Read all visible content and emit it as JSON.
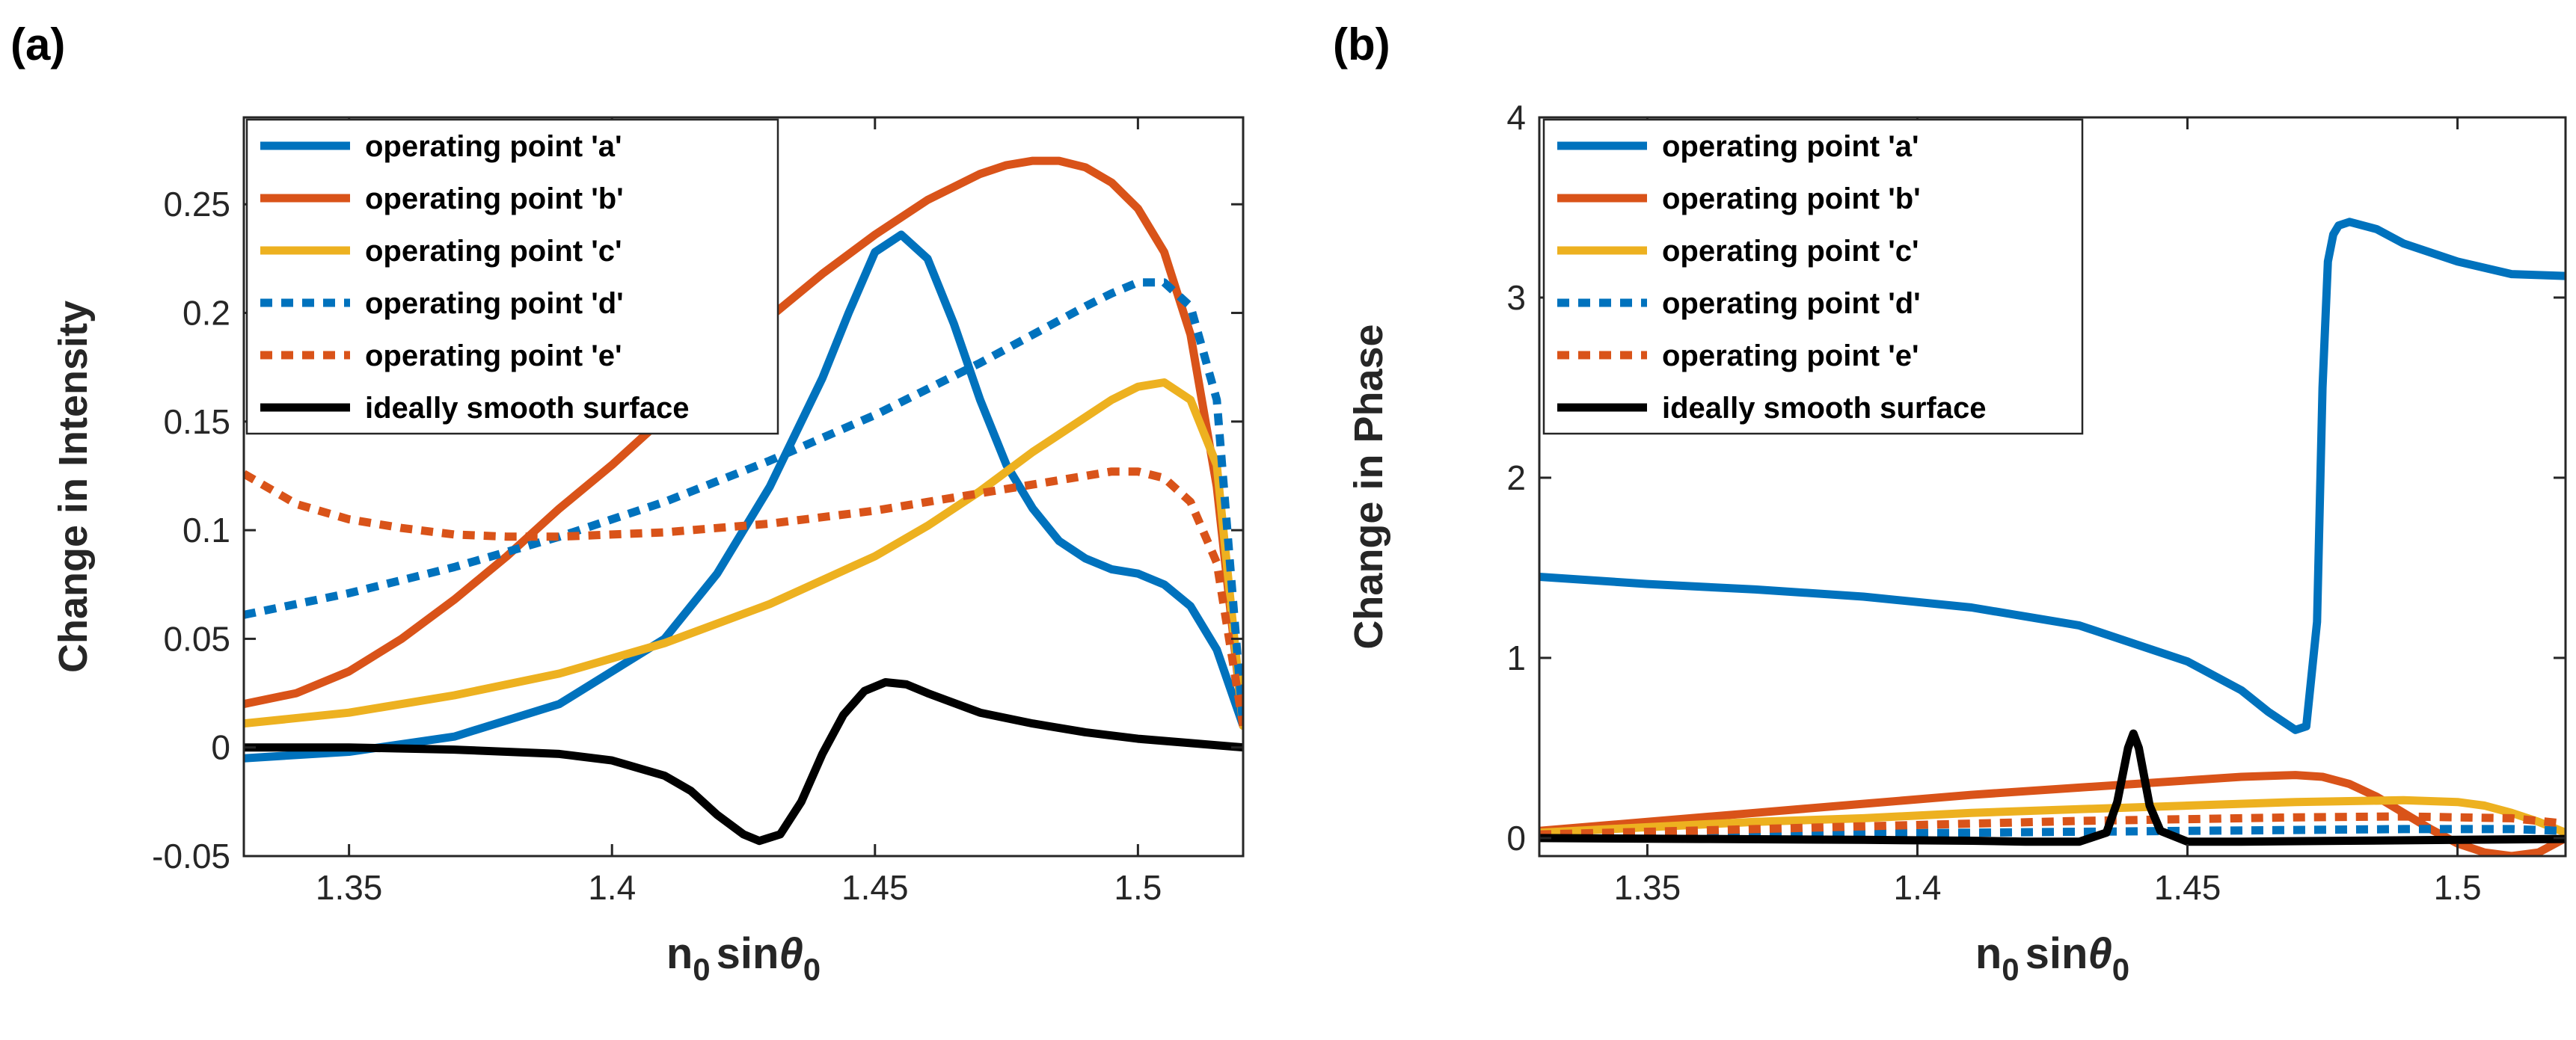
{
  "chart_data": [
    {
      "type": "line",
      "panel_label": "(a)",
      "ylabel": "Change in Intensity",
      "xlabel": {
        "main": "n",
        "sub1": "0",
        "mid": "sin",
        "theta": "θ",
        "sub2": "0"
      },
      "xlim": [
        1.33,
        1.52
      ],
      "ylim": [
        -0.05,
        0.29
      ],
      "xticks": [
        1.35,
        1.4,
        1.45,
        1.5
      ],
      "xtick_labels": [
        "1.35",
        "1.4",
        "1.45",
        "1.5"
      ],
      "yticks": [
        -0.05,
        0,
        0.05,
        0.1,
        0.15,
        0.2,
        0.25
      ],
      "ytick_labels": [
        "-0.05",
        "0",
        "0.05",
        "0.1",
        "0.15",
        "0.2",
        "0.25"
      ],
      "legend_position": "top-left",
      "series": [
        {
          "name": "operating point 'a'",
          "color": "#0072BD",
          "style": "solid",
          "x": [
            1.33,
            1.35,
            1.37,
            1.39,
            1.41,
            1.42,
            1.43,
            1.44,
            1.445,
            1.45,
            1.455,
            1.46,
            1.465,
            1.47,
            1.475,
            1.48,
            1.485,
            1.49,
            1.495,
            1.5,
            1.505,
            1.51,
            1.515,
            1.52
          ],
          "y": [
            -0.005,
            -0.002,
            0.005,
            0.02,
            0.05,
            0.08,
            0.12,
            0.17,
            0.2,
            0.228,
            0.236,
            0.225,
            0.195,
            0.16,
            0.13,
            0.11,
            0.095,
            0.087,
            0.082,
            0.08,
            0.075,
            0.065,
            0.045,
            0.01
          ]
        },
        {
          "name": "operating point 'b'",
          "color": "#D95319",
          "style": "solid",
          "x": [
            1.33,
            1.34,
            1.35,
            1.36,
            1.37,
            1.38,
            1.39,
            1.4,
            1.41,
            1.42,
            1.43,
            1.44,
            1.45,
            1.46,
            1.47,
            1.475,
            1.48,
            1.485,
            1.49,
            1.495,
            1.5,
            1.505,
            1.51,
            1.515,
            1.52
          ],
          "y": [
            0.02,
            0.025,
            0.035,
            0.05,
            0.068,
            0.088,
            0.11,
            0.13,
            0.152,
            0.175,
            0.198,
            0.218,
            0.236,
            0.252,
            0.264,
            0.268,
            0.27,
            0.27,
            0.267,
            0.26,
            0.248,
            0.228,
            0.19,
            0.12,
            0.01
          ]
        },
        {
          "name": "operating point 'c'",
          "color": "#EDB120",
          "style": "solid",
          "x": [
            1.33,
            1.35,
            1.37,
            1.39,
            1.41,
            1.43,
            1.45,
            1.46,
            1.47,
            1.48,
            1.49,
            1.495,
            1.5,
            1.505,
            1.51,
            1.515,
            1.52
          ],
          "y": [
            0.011,
            0.016,
            0.024,
            0.034,
            0.048,
            0.066,
            0.088,
            0.102,
            0.118,
            0.136,
            0.152,
            0.16,
            0.166,
            0.168,
            0.16,
            0.13,
            0.01
          ]
        },
        {
          "name": "operating point 'd'",
          "color": "#0072BD",
          "style": "dotted",
          "x": [
            1.33,
            1.35,
            1.37,
            1.39,
            1.41,
            1.43,
            1.45,
            1.47,
            1.48,
            1.49,
            1.495,
            1.5,
            1.505,
            1.51,
            1.515,
            1.52
          ],
          "y": [
            0.061,
            0.071,
            0.083,
            0.097,
            0.113,
            0.132,
            0.153,
            0.177,
            0.19,
            0.203,
            0.209,
            0.214,
            0.214,
            0.203,
            0.16,
            0.01
          ]
        },
        {
          "name": "operating point 'e'",
          "color": "#D95319",
          "style": "dotted",
          "x": [
            1.33,
            1.34,
            1.35,
            1.36,
            1.37,
            1.38,
            1.39,
            1.4,
            1.41,
            1.42,
            1.43,
            1.44,
            1.45,
            1.46,
            1.47,
            1.48,
            1.49,
            1.495,
            1.5,
            1.505,
            1.51,
            1.515,
            1.52
          ],
          "y": [
            0.126,
            0.112,
            0.105,
            0.101,
            0.098,
            0.097,
            0.097,
            0.098,
            0.099,
            0.101,
            0.103,
            0.106,
            0.109,
            0.113,
            0.117,
            0.121,
            0.125,
            0.127,
            0.127,
            0.124,
            0.113,
            0.085,
            0.01
          ]
        },
        {
          "name": "ideally smooth surface",
          "color": "#000000",
          "style": "solid",
          "x": [
            1.33,
            1.35,
            1.37,
            1.39,
            1.4,
            1.41,
            1.415,
            1.42,
            1.425,
            1.428,
            1.432,
            1.436,
            1.44,
            1.444,
            1.448,
            1.452,
            1.456,
            1.46,
            1.47,
            1.48,
            1.49,
            1.5,
            1.51,
            1.52
          ],
          "y": [
            0,
            0,
            -0.001,
            -0.003,
            -0.006,
            -0.013,
            -0.02,
            -0.031,
            -0.04,
            -0.043,
            -0.04,
            -0.025,
            -0.003,
            0.015,
            0.026,
            0.03,
            0.029,
            0.025,
            0.016,
            0.011,
            0.007,
            0.004,
            0.002,
            0
          ]
        }
      ]
    },
    {
      "type": "line",
      "panel_label": "(b)",
      "ylabel": "Change in Phase",
      "xlabel": {
        "main": "n",
        "sub1": "0",
        "mid": "sin",
        "theta": "θ",
        "sub2": "0"
      },
      "xlim": [
        1.33,
        1.52
      ],
      "ylim": [
        -0.1,
        4
      ],
      "xticks": [
        1.35,
        1.4,
        1.45,
        1.5
      ],
      "xtick_labels": [
        "1.35",
        "1.4",
        "1.45",
        "1.5"
      ],
      "yticks": [
        0,
        1,
        2,
        3,
        4
      ],
      "ytick_labels": [
        "0",
        "1",
        "2",
        "3",
        "4"
      ],
      "legend_position": "top-left",
      "series": [
        {
          "name": "operating point 'a'",
          "color": "#0072BD",
          "style": "solid",
          "x": [
            1.33,
            1.35,
            1.37,
            1.39,
            1.41,
            1.43,
            1.45,
            1.46,
            1.465,
            1.47,
            1.472,
            1.474,
            1.475,
            1.476,
            1.477,
            1.478,
            1.48,
            1.485,
            1.49,
            1.5,
            1.51,
            1.52
          ],
          "y": [
            1.45,
            1.41,
            1.38,
            1.34,
            1.28,
            1.18,
            0.98,
            0.82,
            0.7,
            0.6,
            0.62,
            1.2,
            2.5,
            3.2,
            3.35,
            3.4,
            3.42,
            3.38,
            3.3,
            3.2,
            3.13,
            3.12
          ]
        },
        {
          "name": "operating point 'b'",
          "color": "#D95319",
          "style": "solid",
          "x": [
            1.33,
            1.35,
            1.37,
            1.39,
            1.41,
            1.43,
            1.45,
            1.46,
            1.47,
            1.475,
            1.48,
            1.485,
            1.49,
            1.495,
            1.5,
            1.505,
            1.51,
            1.515,
            1.52
          ],
          "y": [
            0.04,
            0.09,
            0.14,
            0.19,
            0.24,
            0.28,
            0.32,
            0.34,
            0.35,
            0.34,
            0.3,
            0.23,
            0.14,
            0.05,
            -0.03,
            -0.08,
            -0.1,
            -0.08,
            0
          ]
        },
        {
          "name": "operating point 'c'",
          "color": "#EDB120",
          "style": "solid",
          "x": [
            1.33,
            1.35,
            1.37,
            1.39,
            1.41,
            1.43,
            1.45,
            1.47,
            1.49,
            1.5,
            1.505,
            1.51,
            1.515,
            1.52
          ],
          "y": [
            0.03,
            0.06,
            0.09,
            0.11,
            0.14,
            0.16,
            0.18,
            0.2,
            0.21,
            0.2,
            0.18,
            0.14,
            0.09,
            0.03
          ]
        },
        {
          "name": "operating point 'd'",
          "color": "#0072BD",
          "style": "dotted",
          "x": [
            1.33,
            1.35,
            1.37,
            1.39,
            1.41,
            1.43,
            1.45,
            1.47,
            1.49,
            1.51,
            1.52
          ],
          "y": [
            0.01,
            0.015,
            0.02,
            0.025,
            0.03,
            0.035,
            0.04,
            0.045,
            0.05,
            0.05,
            0.04
          ]
        },
        {
          "name": "operating point 'e'",
          "color": "#D95319",
          "style": "dotted",
          "x": [
            1.33,
            1.35,
            1.37,
            1.39,
            1.41,
            1.43,
            1.45,
            1.47,
            1.49,
            1.51,
            1.52
          ],
          "y": [
            0.02,
            0.035,
            0.05,
            0.065,
            0.08,
            0.095,
            0.105,
            0.115,
            0.12,
            0.11,
            0.08
          ]
        },
        {
          "name": "ideally smooth surface",
          "color": "#000000",
          "style": "solid",
          "x": [
            1.33,
            1.36,
            1.39,
            1.41,
            1.42,
            1.43,
            1.435,
            1.437,
            1.439,
            1.44,
            1.441,
            1.443,
            1.445,
            1.45,
            1.46,
            1.48,
            1.5,
            1.52
          ],
          "y": [
            0,
            -0.005,
            -0.01,
            -0.015,
            -0.02,
            -0.02,
            0.03,
            0.2,
            0.5,
            0.58,
            0.5,
            0.18,
            0.04,
            -0.02,
            -0.02,
            -0.015,
            -0.01,
            -0.005
          ]
        }
      ]
    }
  ]
}
